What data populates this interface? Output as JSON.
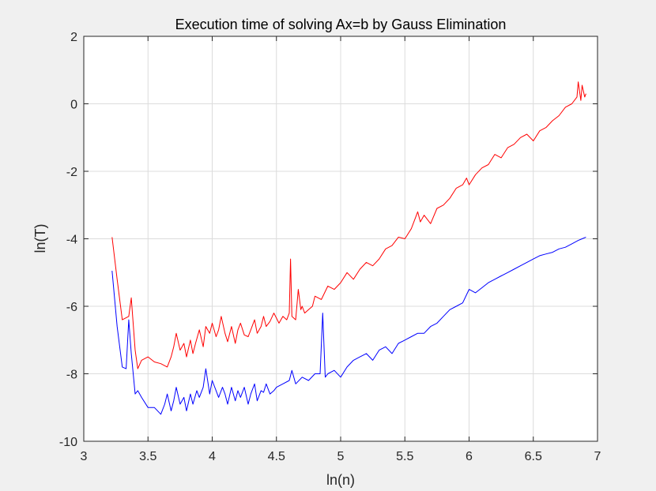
{
  "chart_data": {
    "type": "line",
    "title": "Execution time of solving Ax=b by Gauss Elimination",
    "xlabel": "ln(n)",
    "ylabel": "ln(T)",
    "xlim": [
      3,
      7
    ],
    "ylim": [
      -10,
      2
    ],
    "xticks": [
      3,
      3.5,
      4,
      4.5,
      5,
      5.5,
      6,
      6.5,
      7
    ],
    "xtick_labels": [
      "3",
      "3.5",
      "4",
      "4.5",
      "5",
      "5.5",
      "6",
      "6.5",
      "7"
    ],
    "yticks": [
      -10,
      -8,
      -6,
      -4,
      -2,
      0,
      2
    ],
    "ytick_labels": [
      "-10",
      "-8",
      "-6",
      "-4",
      "-2",
      "0",
      "2"
    ],
    "grid": true,
    "background": "#ffffff",
    "figure_background": "#f0f0f0",
    "series": [
      {
        "color": "#ff0000",
        "x": [
          3.22,
          3.26,
          3.3,
          3.35,
          3.37,
          3.4,
          3.42,
          3.45,
          3.5,
          3.55,
          3.6,
          3.65,
          3.68,
          3.7,
          3.72,
          3.75,
          3.78,
          3.8,
          3.83,
          3.85,
          3.87,
          3.9,
          3.93,
          3.95,
          3.98,
          4.0,
          4.03,
          4.05,
          4.07,
          4.1,
          4.12,
          4.15,
          4.18,
          4.2,
          4.22,
          4.25,
          4.28,
          4.3,
          4.33,
          4.35,
          4.38,
          4.4,
          4.42,
          4.45,
          4.48,
          4.5,
          4.52,
          4.55,
          4.58,
          4.6,
          4.61,
          4.62,
          4.65,
          4.67,
          4.69,
          4.7,
          4.72,
          4.75,
          4.78,
          4.8,
          4.85,
          4.9,
          4.95,
          5.0,
          5.05,
          5.1,
          5.15,
          5.2,
          5.25,
          5.3,
          5.35,
          5.4,
          5.45,
          5.5,
          5.55,
          5.6,
          5.62,
          5.65,
          5.7,
          5.75,
          5.8,
          5.85,
          5.9,
          5.95,
          5.98,
          6.0,
          6.05,
          6.1,
          6.15,
          6.2,
          6.25,
          6.3,
          6.35,
          6.4,
          6.45,
          6.5,
          6.55,
          6.6,
          6.65,
          6.7,
          6.75,
          6.8,
          6.84,
          6.85,
          6.87,
          6.88,
          6.9,
          6.91
        ],
        "y": [
          -3.95,
          -5.2,
          -6.4,
          -6.3,
          -5.75,
          -7.3,
          -7.85,
          -7.6,
          -7.5,
          -7.65,
          -7.7,
          -7.8,
          -7.5,
          -7.2,
          -6.8,
          -7.3,
          -7.1,
          -7.5,
          -7.0,
          -7.4,
          -7.1,
          -6.7,
          -7.2,
          -6.6,
          -6.8,
          -6.5,
          -6.9,
          -6.7,
          -6.3,
          -6.8,
          -7.05,
          -6.6,
          -7.1,
          -6.7,
          -6.5,
          -6.85,
          -6.9,
          -6.7,
          -6.4,
          -6.8,
          -6.6,
          -6.3,
          -6.6,
          -6.45,
          -6.2,
          -6.35,
          -6.5,
          -6.3,
          -6.4,
          -6.2,
          -4.6,
          -6.3,
          -6.4,
          -5.5,
          -6.1,
          -6.0,
          -6.2,
          -6.1,
          -6.0,
          -5.7,
          -5.8,
          -5.4,
          -5.5,
          -5.3,
          -5.0,
          -5.2,
          -4.9,
          -4.7,
          -4.8,
          -4.6,
          -4.3,
          -4.2,
          -3.95,
          -4.0,
          -3.7,
          -3.2,
          -3.5,
          -3.3,
          -3.55,
          -3.1,
          -3.0,
          -2.8,
          -2.5,
          -2.4,
          -2.2,
          -2.4,
          -2.1,
          -1.9,
          -1.8,
          -1.5,
          -1.6,
          -1.3,
          -1.2,
          -1.0,
          -0.9,
          -1.1,
          -0.8,
          -0.7,
          -0.5,
          -0.35,
          -0.1,
          0.0,
          0.2,
          0.65,
          0.1,
          0.55,
          0.2,
          0.3
        ]
      },
      {
        "color": "#0000ff",
        "x": [
          3.22,
          3.26,
          3.3,
          3.33,
          3.35,
          3.37,
          3.4,
          3.42,
          3.45,
          3.5,
          3.55,
          3.6,
          3.63,
          3.65,
          3.68,
          3.7,
          3.72,
          3.75,
          3.78,
          3.8,
          3.83,
          3.85,
          3.88,
          3.9,
          3.93,
          3.95,
          3.98,
          4.0,
          4.03,
          4.05,
          4.08,
          4.1,
          4.12,
          4.15,
          4.18,
          4.2,
          4.22,
          4.25,
          4.28,
          4.3,
          4.33,
          4.35,
          4.38,
          4.4,
          4.42,
          4.45,
          4.48,
          4.5,
          4.55,
          4.6,
          4.62,
          4.65,
          4.7,
          4.75,
          4.8,
          4.84,
          4.86,
          4.88,
          4.9,
          4.95,
          5.0,
          5.05,
          5.1,
          5.15,
          5.2,
          5.25,
          5.3,
          5.35,
          5.4,
          5.45,
          5.5,
          5.55,
          5.6,
          5.65,
          5.7,
          5.75,
          5.8,
          5.85,
          5.9,
          5.95,
          6.0,
          6.05,
          6.1,
          6.15,
          6.2,
          6.25,
          6.3,
          6.35,
          6.4,
          6.45,
          6.5,
          6.55,
          6.6,
          6.65,
          6.7,
          6.75,
          6.8,
          6.85,
          6.88,
          6.91
        ],
        "y": [
          -4.95,
          -6.6,
          -7.8,
          -7.85,
          -6.4,
          -7.4,
          -8.6,
          -8.5,
          -8.7,
          -9.0,
          -9.0,
          -9.2,
          -8.9,
          -8.6,
          -9.1,
          -8.8,
          -8.4,
          -8.9,
          -8.7,
          -9.1,
          -8.6,
          -8.9,
          -8.5,
          -8.7,
          -8.4,
          -7.85,
          -8.6,
          -8.2,
          -8.5,
          -8.7,
          -8.4,
          -8.6,
          -8.9,
          -8.4,
          -8.8,
          -8.5,
          -8.7,
          -8.4,
          -8.9,
          -8.6,
          -8.3,
          -8.8,
          -8.5,
          -8.55,
          -8.3,
          -8.6,
          -8.5,
          -8.4,
          -8.3,
          -8.2,
          -7.9,
          -8.3,
          -8.1,
          -8.2,
          -8.0,
          -8.0,
          -6.2,
          -8.1,
          -8.0,
          -7.9,
          -8.1,
          -7.8,
          -7.6,
          -7.5,
          -7.4,
          -7.6,
          -7.3,
          -7.2,
          -7.4,
          -7.1,
          -7.0,
          -6.9,
          -6.8,
          -6.8,
          -6.6,
          -6.5,
          -6.3,
          -6.1,
          -6.0,
          -5.9,
          -5.5,
          -5.6,
          -5.45,
          -5.3,
          -5.2,
          -5.1,
          -5.0,
          -4.9,
          -4.8,
          -4.7,
          -4.6,
          -4.5,
          -4.45,
          -4.4,
          -4.3,
          -4.25,
          -4.15,
          -4.05,
          -4.0,
          -3.95
        ]
      }
    ]
  }
}
